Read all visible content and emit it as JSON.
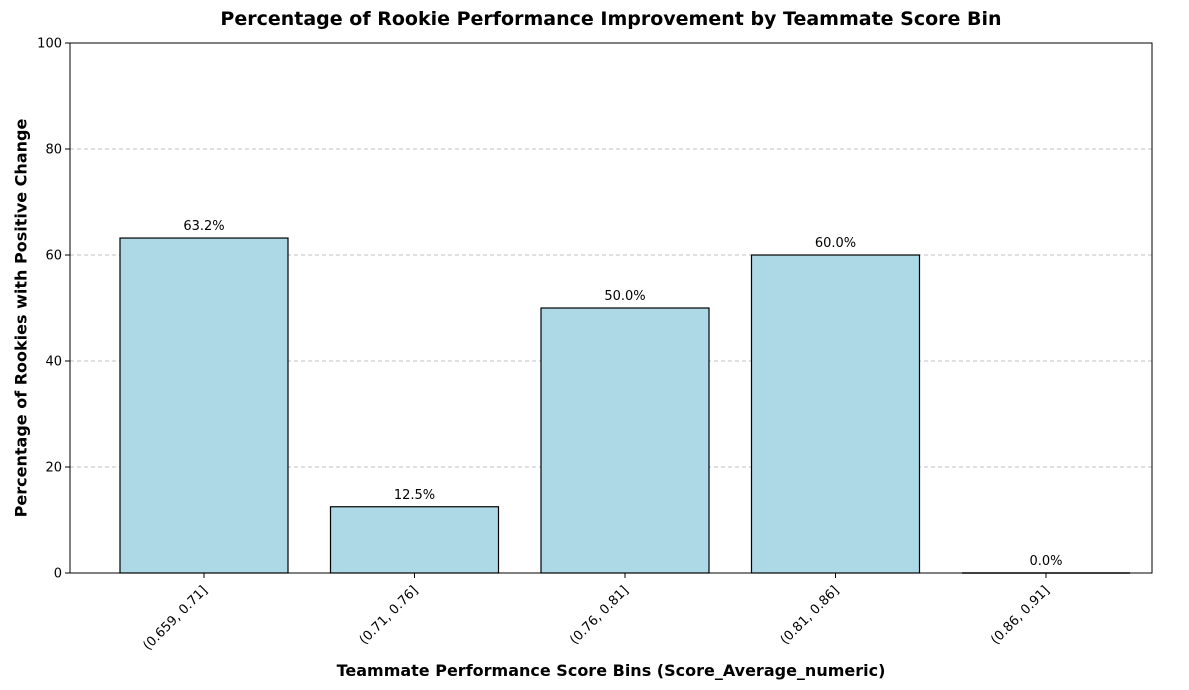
{
  "chart_data": {
    "type": "bar",
    "title": "Percentage of Rookie Performance Improvement by Teammate Score Bin",
    "xlabel": "Teammate Performance Score Bins (Score_Average_numeric)",
    "ylabel": "Percentage of Rookies with Positive Change",
    "categories": [
      "(0.659, 0.71]",
      "(0.71, 0.76]",
      "(0.76, 0.81]",
      "(0.81, 0.86]",
      "(0.86, 0.91]"
    ],
    "values": [
      63.2,
      12.5,
      50.0,
      60.0,
      0.0
    ],
    "data_labels": [
      "63.2%",
      "12.5%",
      "50.0%",
      "60.0%",
      "0.0%"
    ],
    "ylim": [
      0,
      100
    ],
    "yticks": [
      0,
      20,
      40,
      60,
      80,
      100
    ],
    "ytick_labels": [
      "0",
      "20",
      "40",
      "60",
      "80",
      "100"
    ],
    "grid": "y-dashed",
    "legend": "none",
    "colors": {
      "bar_fill": "#add8e6",
      "bar_edge": "#000000",
      "grid": "#c0c0c0"
    }
  }
}
